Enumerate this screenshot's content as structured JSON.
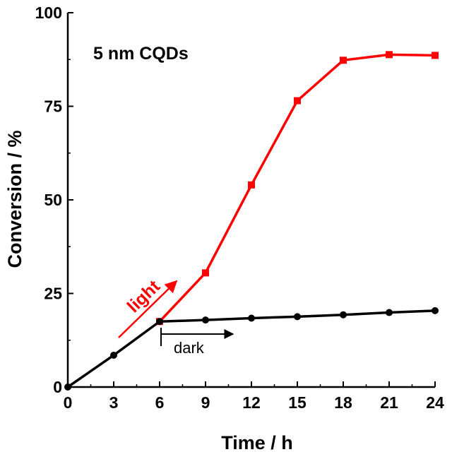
{
  "chart_data": {
    "type": "line",
    "title": "",
    "xlabel": "Time / h",
    "ylabel": "Conversion / %",
    "xlim": [
      0,
      24
    ],
    "ylim": [
      0,
      100
    ],
    "xticks": [
      0,
      3,
      6,
      9,
      12,
      15,
      18,
      21,
      24
    ],
    "yticks": [
      0,
      25,
      50,
      75,
      100
    ],
    "grid": false,
    "legend": "none",
    "series": [
      {
        "color": "#ff0000",
        "marker": "square",
        "x": [
          6,
          9,
          12,
          15,
          18,
          21,
          24
        ],
        "values": [
          17.5,
          30.5,
          54,
          76.5,
          87.3,
          88.8,
          88.6
        ]
      },
      {
        "color": "#000000",
        "marker": "circle",
        "x": [
          0,
          3,
          6,
          9,
          12,
          15,
          18,
          21,
          24
        ],
        "values": [
          0,
          8.5,
          17.5,
          17.9,
          18.4,
          18.8,
          19.3,
          19.9,
          20.4
        ]
      }
    ],
    "annotations": {
      "sample_label": "5 nm CQDs",
      "light_label": "light",
      "dark_label": "dark",
      "light_color": "#ff0000"
    }
  }
}
